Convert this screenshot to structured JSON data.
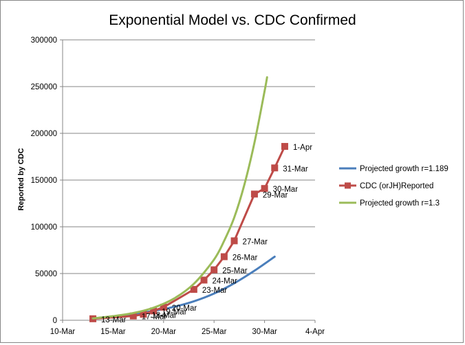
{
  "chart_data": {
    "type": "line",
    "title": "Exponential Model vs.  CDC Confirmed",
    "ylabel": "Reported by CDC",
    "xlabel": "",
    "x_axis": {
      "unit": "date",
      "range": [
        "10-Mar",
        "4-Apr"
      ],
      "ticks": [
        "10-Mar",
        "15-Mar",
        "20-Mar",
        "25-Mar",
        "30-Mar",
        "4-Apr"
      ]
    },
    "y_axis": {
      "range": [
        0,
        300000
      ],
      "ticks": [
        "0",
        "50000",
        "100000",
        "150000",
        "200000",
        "250000",
        "300000"
      ]
    },
    "grid": "horizontal",
    "legend_position": "right",
    "series": [
      {
        "name": "Projected growth r=1.189",
        "color": "#4A7EBB",
        "marker": "none",
        "points": [
          {
            "x": "13-Mar",
            "y": 2000
          },
          {
            "x": "15-Mar",
            "y": 4200
          },
          {
            "x": "17-Mar",
            "y": 6800
          },
          {
            "x": "19-Mar",
            "y": 10000
          },
          {
            "x": "21-Mar",
            "y": 14300
          },
          {
            "x": "23-Mar",
            "y": 20300
          },
          {
            "x": "25-Mar",
            "y": 28600
          },
          {
            "x": "27-Mar",
            "y": 39600
          },
          {
            "x": "29-Mar",
            "y": 53000
          },
          {
            "x": "31-Mar",
            "y": 68000
          }
        ]
      },
      {
        "name": "CDC (orJH)Reported",
        "color": "#BE4B48",
        "marker": "square",
        "points": [
          {
            "x": "13-Mar",
            "y": 1600,
            "label": "13-Mar"
          },
          {
            "x": "17-Mar",
            "y": 4600,
            "label": "17-Mar"
          },
          {
            "x": "18-Mar",
            "y": 6400,
            "label": "18-Mar"
          },
          {
            "x": "19-Mar",
            "y": 10000,
            "label": "19-Mar"
          },
          {
            "x": "20-Mar",
            "y": 14000,
            "label": "20-Mar"
          },
          {
            "x": "23-Mar",
            "y": 33000,
            "label": "23-Mar"
          },
          {
            "x": "24-Mar",
            "y": 43000,
            "label": "24-Mar"
          },
          {
            "x": "25-Mar",
            "y": 54000,
            "label": "25-Mar"
          },
          {
            "x": "26-Mar",
            "y": 68000,
            "label": "26-Mar"
          },
          {
            "x": "27-Mar",
            "y": 85000,
            "label": "27-Mar"
          },
          {
            "x": "29-Mar",
            "y": 135000,
            "label": "29-Mar"
          },
          {
            "x": "30-Mar",
            "y": 141000,
            "label": "30-Mar"
          },
          {
            "x": "31-Mar",
            "y": 163000,
            "label": "31-Mar"
          },
          {
            "x": "1-Apr",
            "y": 186000,
            "label": "1-Apr"
          }
        ]
      },
      {
        "name": "Projected growth r=1.3",
        "color": "#9BBB59",
        "marker": "none",
        "points": [
          {
            "x": "13-Mar",
            "y": 2000
          },
          {
            "x": "15-Mar",
            "y": 4400
          },
          {
            "x": "17-Mar",
            "y": 7700
          },
          {
            "x": "19-Mar",
            "y": 13400
          },
          {
            "x": "21-Mar",
            "y": 23000
          },
          {
            "x": "23-Mar",
            "y": 39000
          },
          {
            "x": "25-Mar",
            "y": 65000
          },
          {
            "x": "26-Mar",
            "y": 85000
          },
          {
            "x": "27-Mar",
            "y": 110000
          },
          {
            "x": "28-Mar",
            "y": 145000
          },
          {
            "x": "29-Mar",
            "y": 190000
          },
          {
            "x": "30-Mar",
            "y": 245000
          },
          {
            "x": "30-Mar 06:00",
            "y": 260000
          }
        ]
      }
    ]
  }
}
